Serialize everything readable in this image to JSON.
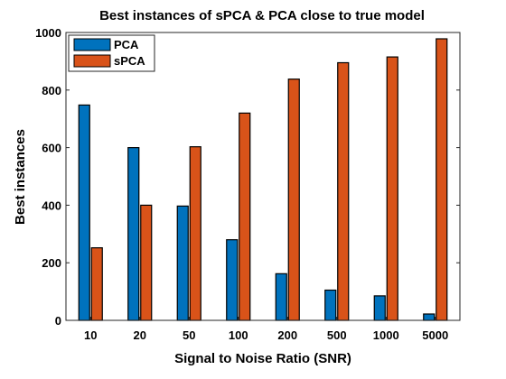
{
  "chart_data": {
    "type": "bar",
    "title": "Best instances of sPCA & PCA close to true model",
    "xlabel": "Signal to Noise Ratio (SNR)",
    "ylabel": "Best instances",
    "categories": [
      "10",
      "20",
      "50",
      "100",
      "200",
      "500",
      "1000",
      "5000"
    ],
    "series": [
      {
        "name": "PCA",
        "color": "#0072BD",
        "values": [
          748,
          600,
          397,
          280,
          162,
          105,
          85,
          22
        ]
      },
      {
        "name": "sPCA",
        "color": "#D95319",
        "values": [
          252,
          400,
          603,
          720,
          838,
          895,
          915,
          978
        ]
      }
    ],
    "ylim": [
      0,
      1000
    ],
    "yticks": [
      0,
      200,
      400,
      600,
      800,
      1000
    ],
    "grid": false,
    "legend_position": "top-left"
  }
}
